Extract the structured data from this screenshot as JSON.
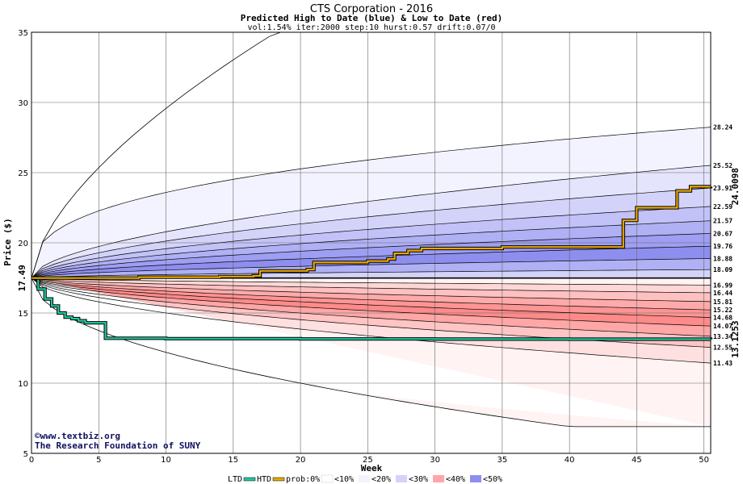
{
  "chart_data": {
    "type": "area",
    "title": "CTS Corporation - 2016",
    "subtitle": "Predicted High to Date (blue) &  Low to Date (red)",
    "params": "vol:1.54% iter:2000 step:10 hurst:0.57 drift:0.07/0",
    "xlabel": "Week",
    "ylabel": "Price ($)",
    "xlim": [
      0,
      50.5
    ],
    "ylim": [
      5,
      35
    ],
    "x_ticks": [
      0,
      5,
      10,
      15,
      20,
      25,
      30,
      35,
      40,
      45,
      50
    ],
    "y_ticks": [
      5,
      10,
      15,
      20,
      25,
      30,
      35
    ],
    "grid": true,
    "start_price": 17.49,
    "start_price_label": "17.49",
    "high_bands": [
      {
        "end": 35.0,
        "color": "#ffffff"
      },
      {
        "end": 28.24,
        "color": "#f3f3ff"
      },
      {
        "end": 25.52,
        "color": "#e4e4fc"
      },
      {
        "end": 23.91,
        "color": "#d3d3fa"
      },
      {
        "end": 22.59,
        "color": "#c2c2f8"
      },
      {
        "end": 21.57,
        "color": "#b0b0f5"
      },
      {
        "end": 20.67,
        "color": "#9e9ef2"
      },
      {
        "end": 19.76,
        "color": "#8e8eef"
      },
      {
        "end": 18.88,
        "color": "#b0b0f5"
      },
      {
        "end": 18.09,
        "color": "#d3d3fa"
      },
      {
        "end": 17.49,
        "color": "#f3f3ff"
      }
    ],
    "low_bands": [
      {
        "end": 17.49,
        "color": "#fff3f3"
      },
      {
        "end": 16.99,
        "color": "#ffd6d6"
      },
      {
        "end": 16.44,
        "color": "#ffc0c0"
      },
      {
        "end": 15.81,
        "color": "#ffaaaa"
      },
      {
        "end": 15.22,
        "color": "#ff9494"
      },
      {
        "end": 14.68,
        "color": "#ff8a8a"
      },
      {
        "end": 14.07,
        "color": "#ffa6a6"
      },
      {
        "end": 13.34,
        "color": "#ffc4c4"
      },
      {
        "end": 12.55,
        "color": "#ffe0e0"
      },
      {
        "end": 11.43,
        "color": "#fff3f3"
      },
      {
        "end": 6.9,
        "color": "#ffffff"
      }
    ],
    "right_labels": [
      "28.24",
      "25.52",
      "23.91",
      "22.59",
      "21.57",
      "20.67",
      "19.76",
      "18.88",
      "18.09",
      "16.99",
      "16.44",
      "15.81",
      "15.22",
      "14.68",
      "14.07",
      "13.34",
      "12.55",
      "11.43"
    ],
    "high_to_date": {
      "name": "HTD",
      "color": "#e8a800",
      "last_value": 24.0098,
      "last_label": "24.0098",
      "x": [
        0,
        3,
        8,
        14,
        16.5,
        17,
        20.5,
        21,
        25,
        26.5,
        27,
        28,
        29,
        35,
        43.5,
        44,
        45,
        47,
        48,
        49,
        50.5
      ],
      "y": [
        17.49,
        17.49,
        17.55,
        17.6,
        17.65,
        18.0,
        18.1,
        18.6,
        18.7,
        18.85,
        19.25,
        19.45,
        19.6,
        19.7,
        19.7,
        21.6,
        22.5,
        22.5,
        23.7,
        24.0,
        24.0098
      ]
    },
    "low_to_date": {
      "name": "LTD",
      "color": "#20c8a0",
      "last_value": 13.1253,
      "last_label": "13.1253",
      "x": [
        0,
        0.5,
        1,
        1.5,
        2,
        2.5,
        3,
        3.5,
        4,
        5,
        5.5,
        10,
        20,
        30,
        40,
        50.5
      ],
      "y": [
        17.49,
        16.7,
        16.0,
        15.5,
        15.0,
        14.7,
        14.6,
        14.45,
        14.3,
        14.3,
        13.2,
        13.17,
        13.15,
        13.14,
        13.13,
        13.1253
      ]
    },
    "max_envelope_top": 35.0,
    "min_envelope_bottom": 6.9,
    "median_line": 17.49
  },
  "credit": {
    "line1": "©www.textbiz.org",
    "line2": "The Research Foundation of SUNY"
  },
  "legend": {
    "ltd": "LTD",
    "htd": "HTD",
    "prob": "prob:0%",
    "b10": "<10%",
    "b20": "<20%",
    "b30": "<30%",
    "b40": "<40%",
    "b50": "<50%",
    "c0": "#ffffff",
    "c10": "#f3f3ff",
    "c20": "#e4e4fc",
    "c30": "#d3d3fa",
    "c40": "#b0b0f5",
    "c50": "#8e8eef",
    "r10": "#fff3f3",
    "r20": "#ffe0e0",
    "r30": "#ffc4c4",
    "r40": "#ffa6a6",
    "r50": "#ff8a8a"
  }
}
